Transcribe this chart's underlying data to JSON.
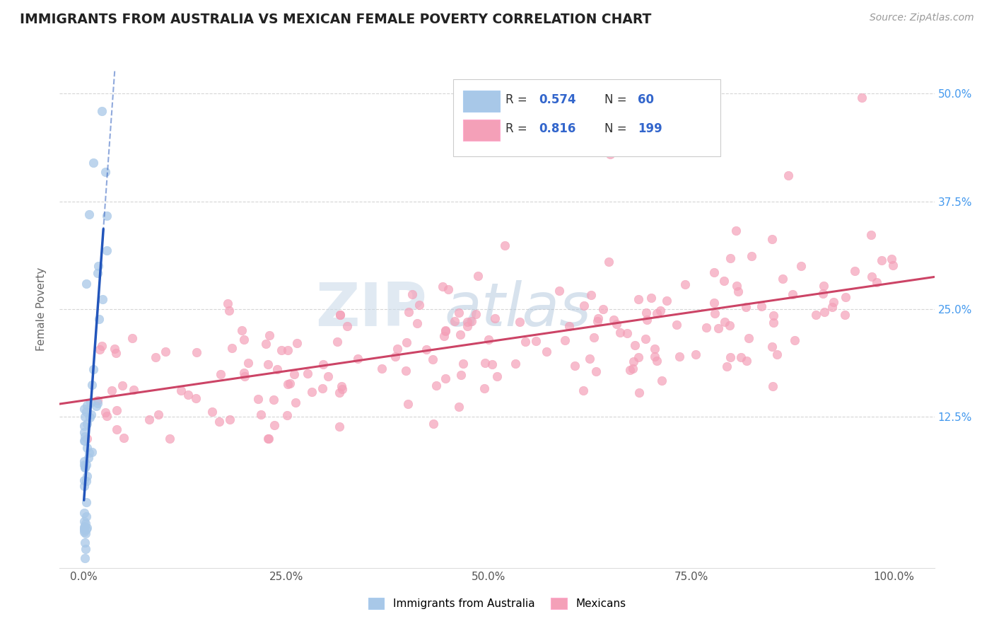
{
  "title": "IMMIGRANTS FROM AUSTRALIA VS MEXICAN FEMALE POVERTY CORRELATION CHART",
  "source_text": "Source: ZipAtlas.com",
  "ylabel": "Female Poverty",
  "x_tick_labels": [
    "0.0%",
    "25.0%",
    "50.0%",
    "75.0%",
    "100.0%"
  ],
  "x_tick_positions": [
    0,
    25,
    50,
    75,
    100
  ],
  "y_tick_labels": [
    "12.5%",
    "25.0%",
    "37.5%",
    "50.0%"
  ],
  "y_tick_positions": [
    12.5,
    25.0,
    37.5,
    50.0
  ],
  "xlim": [
    -3,
    105
  ],
  "ylim": [
    -5,
    55
  ],
  "australia_color": "#A8C8E8",
  "mexico_color": "#F4A0B8",
  "australia_line_color": "#2255BB",
  "mexico_line_color": "#CC4466",
  "watermark_zip": "ZIP",
  "watermark_atlas": "atlas",
  "background_color": "#FFFFFF",
  "grid_color": "#CCCCCC",
  "title_color": "#222222",
  "source_color": "#999999",
  "axis_label_color": "#666666",
  "tick_color": "#4499EE",
  "legend_r_color": "#3366CC",
  "legend_n_color": "#3366CC"
}
